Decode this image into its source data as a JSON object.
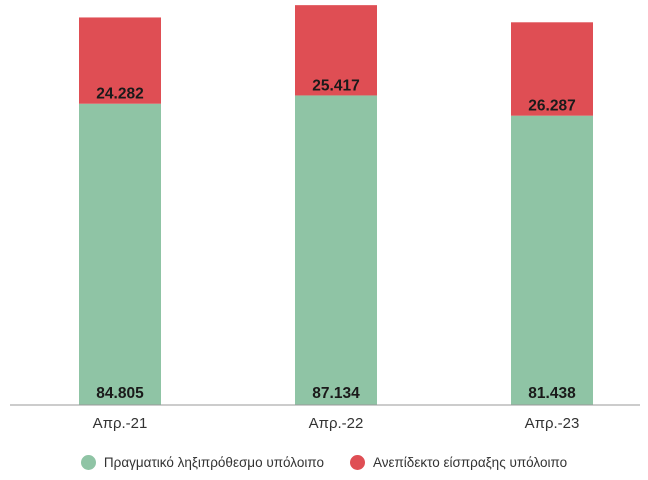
{
  "colors": {
    "actual": "#8fc4a5",
    "bad_debt": "#df4e54",
    "axis": "#999999",
    "label_text": "#1a1a1a",
    "tick_text": "#333333"
  },
  "chart_data": {
    "type": "bar",
    "stacked": true,
    "categories": [
      "Απρ.-21",
      "Απρ.-22",
      "Απρ.-23"
    ],
    "series": [
      {
        "name": "Πραγματικό ληξιπρόθεσμο υπόλοιπο",
        "values": [
          84805,
          87134,
          81438
        ],
        "labels": [
          "84.805",
          "87.134",
          "81.438"
        ],
        "color": "#8fc4a5"
      },
      {
        "name": "Ανεπίδεκτο είσπραξης υπόλοιπο",
        "values": [
          24282,
          25417,
          26287
        ],
        "labels": [
          "24.282",
          "25.417",
          "26.287"
        ],
        "color": "#df4e54"
      }
    ],
    "ylim": [
      0,
      114000
    ],
    "title": "",
    "xlabel": "",
    "ylabel": "",
    "grid": false,
    "legend_position": "bottom"
  }
}
